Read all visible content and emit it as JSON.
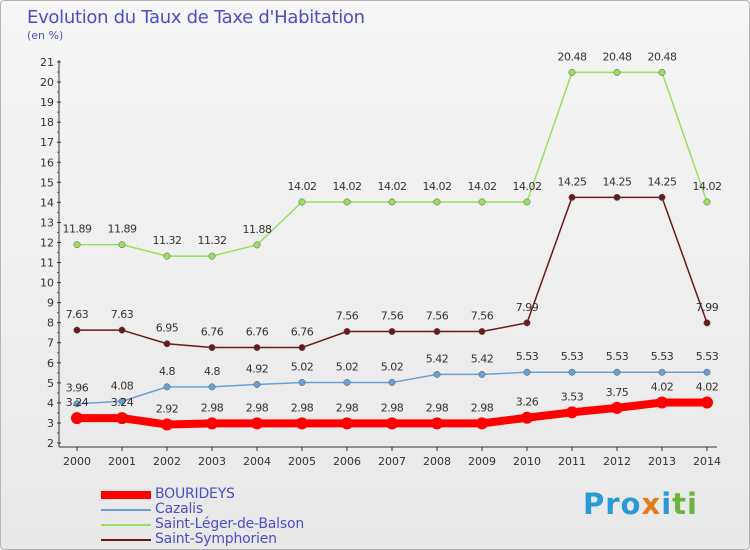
{
  "title": "Evolution du Taux de Taxe d'Habitation",
  "subtitle": "(en %)",
  "logo": {
    "part1": "Pro",
    "part2": "x",
    "part3": "i",
    "part4": "ti"
  },
  "colors": {
    "title": "#4d4dc6",
    "bourideys": "#ff0000",
    "cazalis": "#6aa0d6",
    "saint_leger": "#99e05e",
    "saint_symphorien": "#6b1a1a",
    "axis": "#333333",
    "grid": "#d6d6d6"
  },
  "chart_data": {
    "type": "line",
    "title": "Evolution du Taux de Taxe d'Habitation",
    "ylabel": "(en %)",
    "xlabel": "",
    "x": [
      2000,
      2001,
      2002,
      2003,
      2004,
      2005,
      2006,
      2007,
      2008,
      2009,
      2010,
      2011,
      2012,
      2013,
      2014
    ],
    "ylim": [
      2,
      21
    ],
    "yticks": [
      2,
      3,
      4,
      5,
      6,
      7,
      8,
      9,
      10,
      11,
      12,
      13,
      14,
      15,
      16,
      17,
      18,
      19,
      20,
      21
    ],
    "grid": false,
    "legend_position": "bottom-left",
    "series": [
      {
        "name": "BOURIDEYS",
        "values": [
          3.24,
          3.24,
          2.92,
          2.98,
          2.98,
          2.98,
          2.98,
          2.98,
          2.98,
          2.98,
          3.26,
          3.53,
          3.75,
          4.02,
          4.02
        ],
        "labels": [
          "3.24",
          "3.24",
          "2.92",
          "2.98",
          "2.98",
          "2.98",
          "2.98",
          "2.98",
          "2.98",
          "2.98",
          "3.26",
          "3.53",
          "3.75",
          "4.02",
          "4.02"
        ]
      },
      {
        "name": "Cazalis",
        "values": [
          3.96,
          4.08,
          4.8,
          4.8,
          4.92,
          5.02,
          5.02,
          5.02,
          5.42,
          5.42,
          5.53,
          5.53,
          5.53,
          5.53,
          5.53
        ],
        "labels": [
          "3.96",
          "4.08",
          "4.8",
          "4.8",
          "4.92",
          "5.02",
          "5.02",
          "5.02",
          "5.42",
          "5.42",
          "5.53",
          "5.53",
          "5.53",
          "5.53",
          "5.53"
        ]
      },
      {
        "name": "Saint-Léger-de-Balson",
        "values": [
          11.89,
          11.89,
          11.32,
          11.32,
          11.88,
          14.02,
          14.02,
          14.02,
          14.02,
          14.02,
          14.02,
          20.48,
          20.48,
          20.48,
          14.02
        ],
        "labels": [
          "11.89",
          "11.89",
          "11.32",
          "11.32",
          "11.88",
          "14.02",
          "14.02",
          "14.02",
          "14.02",
          "14.02",
          "14.02",
          "20.48",
          "20.48",
          "20.48",
          "14.02"
        ]
      },
      {
        "name": "Saint-Symphorien",
        "values": [
          7.63,
          7.63,
          6.95,
          6.76,
          6.76,
          6.76,
          7.56,
          7.56,
          7.56,
          7.56,
          7.99,
          14.25,
          14.25,
          14.25,
          7.99
        ],
        "labels": [
          "7.63",
          "7.63",
          "6.95",
          "6.76",
          "6.76",
          "6.76",
          "7.56",
          "7.56",
          "7.56",
          "7.56",
          "7.99",
          "14.25",
          "14.25",
          "14.25",
          "7.99"
        ]
      }
    ]
  }
}
